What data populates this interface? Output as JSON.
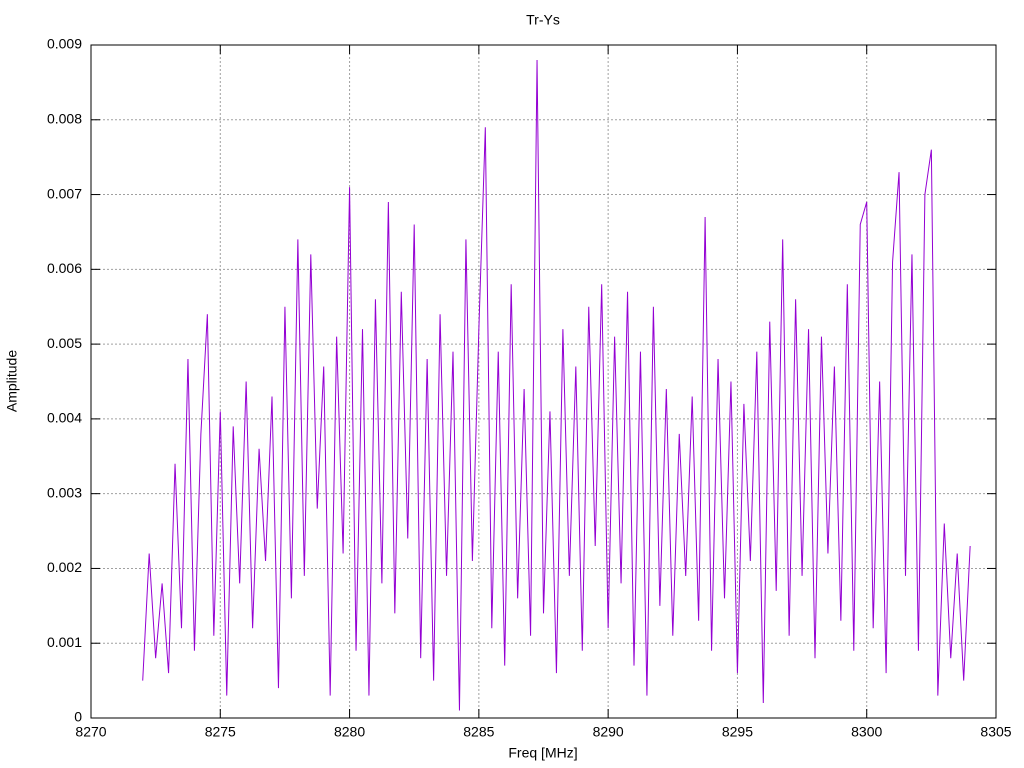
{
  "chart_data": {
    "type": "line",
    "title": "Tr-Ys",
    "x_label": "Freq [MHz]",
    "y_label": "Amplitude",
    "x": [
      8272,
      8272.25,
      8272.5,
      8272.75,
      8273,
      8273.25,
      8273.5,
      8273.75,
      8274,
      8274.25,
      8274.5,
      8274.75,
      8275,
      8275.25,
      8275.5,
      8275.75,
      8276,
      8276.25,
      8276.5,
      8276.75,
      8277,
      8277.25,
      8277.5,
      8277.75,
      8278,
      8278.25,
      8278.5,
      8278.75,
      8279,
      8279.25,
      8279.5,
      8279.75,
      8280,
      8280.25,
      8280.5,
      8280.75,
      8281,
      8281.25,
      8281.5,
      8281.75,
      8282,
      8282.25,
      8282.5,
      8282.75,
      8283,
      8283.25,
      8283.5,
      8283.75,
      8284,
      8284.25,
      8284.5,
      8284.75,
      8285,
      8285.25,
      8285.5,
      8285.75,
      8286,
      8286.25,
      8286.5,
      8286.75,
      8287,
      8287.25,
      8287.5,
      8287.75,
      8288,
      8288.25,
      8288.5,
      8288.75,
      8289,
      8289.25,
      8289.5,
      8289.75,
      8290,
      8290.25,
      8290.5,
      8290.75,
      8291,
      8291.25,
      8291.5,
      8291.75,
      8292,
      8292.25,
      8292.5,
      8292.75,
      8293,
      8293.25,
      8293.5,
      8293.75,
      8294,
      8294.25,
      8294.5,
      8294.75,
      8295,
      8295.25,
      8295.5,
      8295.75,
      8296,
      8296.25,
      8296.5,
      8296.75,
      8297,
      8297.25,
      8297.5,
      8297.75,
      8298,
      8298.25,
      8298.5,
      8298.75,
      8299,
      8299.25,
      8299.5,
      8299.75,
      8300,
      8300.25,
      8300.5,
      8300.75,
      8301,
      8301.25,
      8301.5,
      8301.75,
      8302,
      8302.25,
      8302.5,
      8302.75,
      8303,
      8303.25,
      8303.5,
      8303.75,
      8304
    ],
    "series": [
      {
        "color": "#9400d3",
        "values": [
          0.0005,
          0.0022,
          0.0008,
          0.0018,
          0.0006,
          0.0034,
          0.0012,
          0.0048,
          0.0009,
          0.0038,
          0.0054,
          0.0011,
          0.0041,
          0.0003,
          0.0039,
          0.0018,
          0.0045,
          0.0012,
          0.0036,
          0.0021,
          0.0043,
          0.0004,
          0.0055,
          0.0016,
          0.0064,
          0.0019,
          0.0062,
          0.0028,
          0.0047,
          0.0003,
          0.0051,
          0.0022,
          0.0071,
          0.0009,
          0.0052,
          0.0003,
          0.0056,
          0.0018,
          0.0069,
          0.0014,
          0.0057,
          0.0024,
          0.0066,
          0.0008,
          0.0048,
          0.0005,
          0.0054,
          0.0019,
          0.0049,
          0.0001,
          0.0064,
          0.0021,
          0.0052,
          0.0079,
          0.0012,
          0.0049,
          0.0007,
          0.0058,
          0.0016,
          0.0044,
          0.0011,
          0.0088,
          0.0014,
          0.0041,
          0.0006,
          0.0052,
          0.0019,
          0.0047,
          0.0009,
          0.0055,
          0.0023,
          0.0058,
          0.0012,
          0.0051,
          0.0018,
          0.0057,
          0.0007,
          0.0049,
          0.0003,
          0.0055,
          0.0015,
          0.0044,
          0.0011,
          0.0038,
          0.0019,
          0.0043,
          0.0013,
          0.0067,
          0.0009,
          0.0048,
          0.0016,
          0.0045,
          0.0006,
          0.0042,
          0.0021,
          0.0049,
          0.0002,
          0.0053,
          0.0017,
          0.0064,
          0.0011,
          0.0056,
          0.0019,
          0.0052,
          0.0008,
          0.0051,
          0.0022,
          0.0047,
          0.0013,
          0.0058,
          0.0009,
          0.0066,
          0.0069,
          0.0012,
          0.0045,
          0.0006,
          0.0061,
          0.0073,
          0.0019,
          0.0062,
          0.0009,
          0.007,
          0.0076,
          0.0003,
          0.0026,
          0.0008,
          0.0022,
          0.0005,
          0.0023
        ]
      }
    ],
    "xlim": [
      8270,
      8305
    ],
    "xticks": [
      8270,
      8275,
      8280,
      8285,
      8290,
      8295,
      8300,
      8305
    ],
    "ylim": [
      0,
      0.009
    ],
    "yticks": [
      0,
      0.001,
      0.002,
      0.003,
      0.004,
      0.005,
      0.006,
      0.007,
      0.008,
      0.009
    ],
    "grid": true
  }
}
